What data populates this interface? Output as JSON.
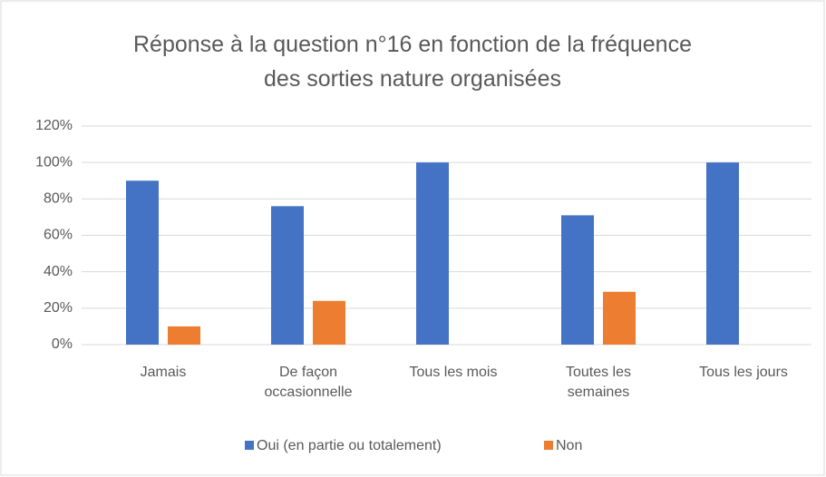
{
  "chart_data": {
    "type": "bar",
    "title": "Réponse à la question n°16 en fonction de la fréquence des sorties nature organisées",
    "categories": [
      "Jamais",
      "De façon occasionnelle",
      "Tous les mois",
      "Toutes les semaines",
      "Tous les jours"
    ],
    "series": [
      {
        "name": "Oui (en partie ou totalement)",
        "color": "#4472c4",
        "values": [
          90,
          76,
          100,
          71,
          100
        ]
      },
      {
        "name": "Non",
        "color": "#ed7d31",
        "values": [
          10,
          24,
          0,
          29,
          0
        ]
      }
    ],
    "ylim": [
      0,
      120
    ],
    "yticks": [
      {
        "value": 0,
        "label": "0%"
      },
      {
        "value": 20,
        "label": "20%"
      },
      {
        "value": 40,
        "label": "40%"
      },
      {
        "value": 60,
        "label": "60%"
      },
      {
        "value": 80,
        "label": "80%"
      },
      {
        "value": 100,
        "label": "100%"
      },
      {
        "value": 120,
        "label": "120%"
      }
    ],
    "grid": true,
    "legend": "bottom"
  }
}
